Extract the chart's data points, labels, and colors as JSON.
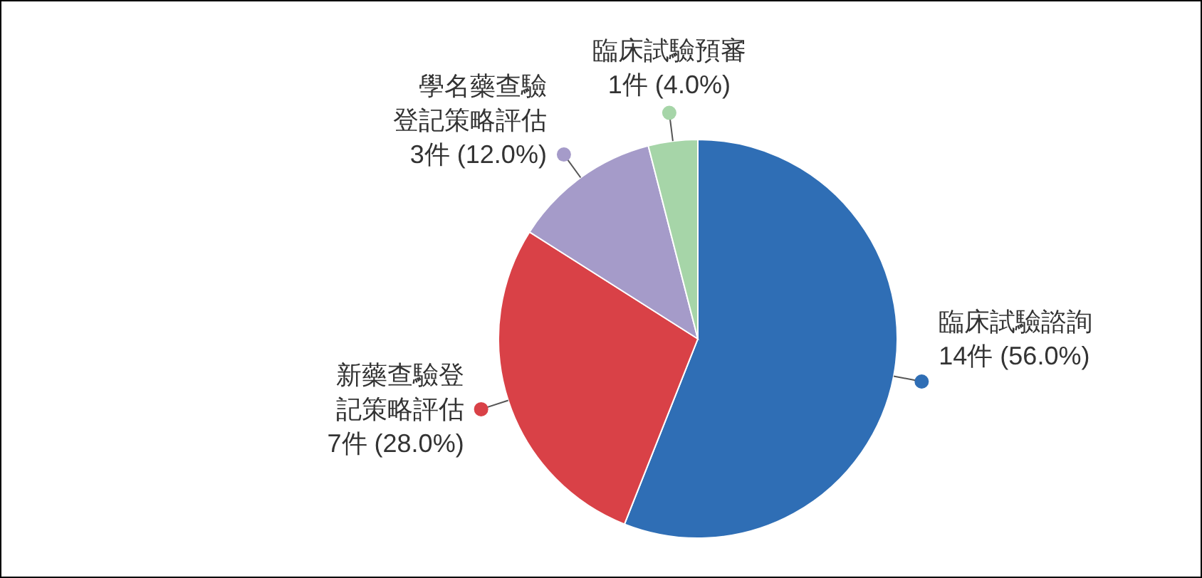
{
  "chart_data": {
    "type": "pie",
    "categories": [
      "臨床試驗諮詢",
      "新藥查驗登記策略評估",
      "學名藥查驗登記策略評估",
      "臨床試驗預審"
    ],
    "values": [
      14,
      7,
      3,
      1
    ],
    "colors": [
      "#2f6eb5",
      "#d94147",
      "#a59bc9",
      "#a6d5a8"
    ],
    "value_labels": [
      "14件 (56.0%)",
      "7件 (28.0%)",
      "3件 (12.0%)",
      "1件 (4.0%)"
    ]
  }
}
